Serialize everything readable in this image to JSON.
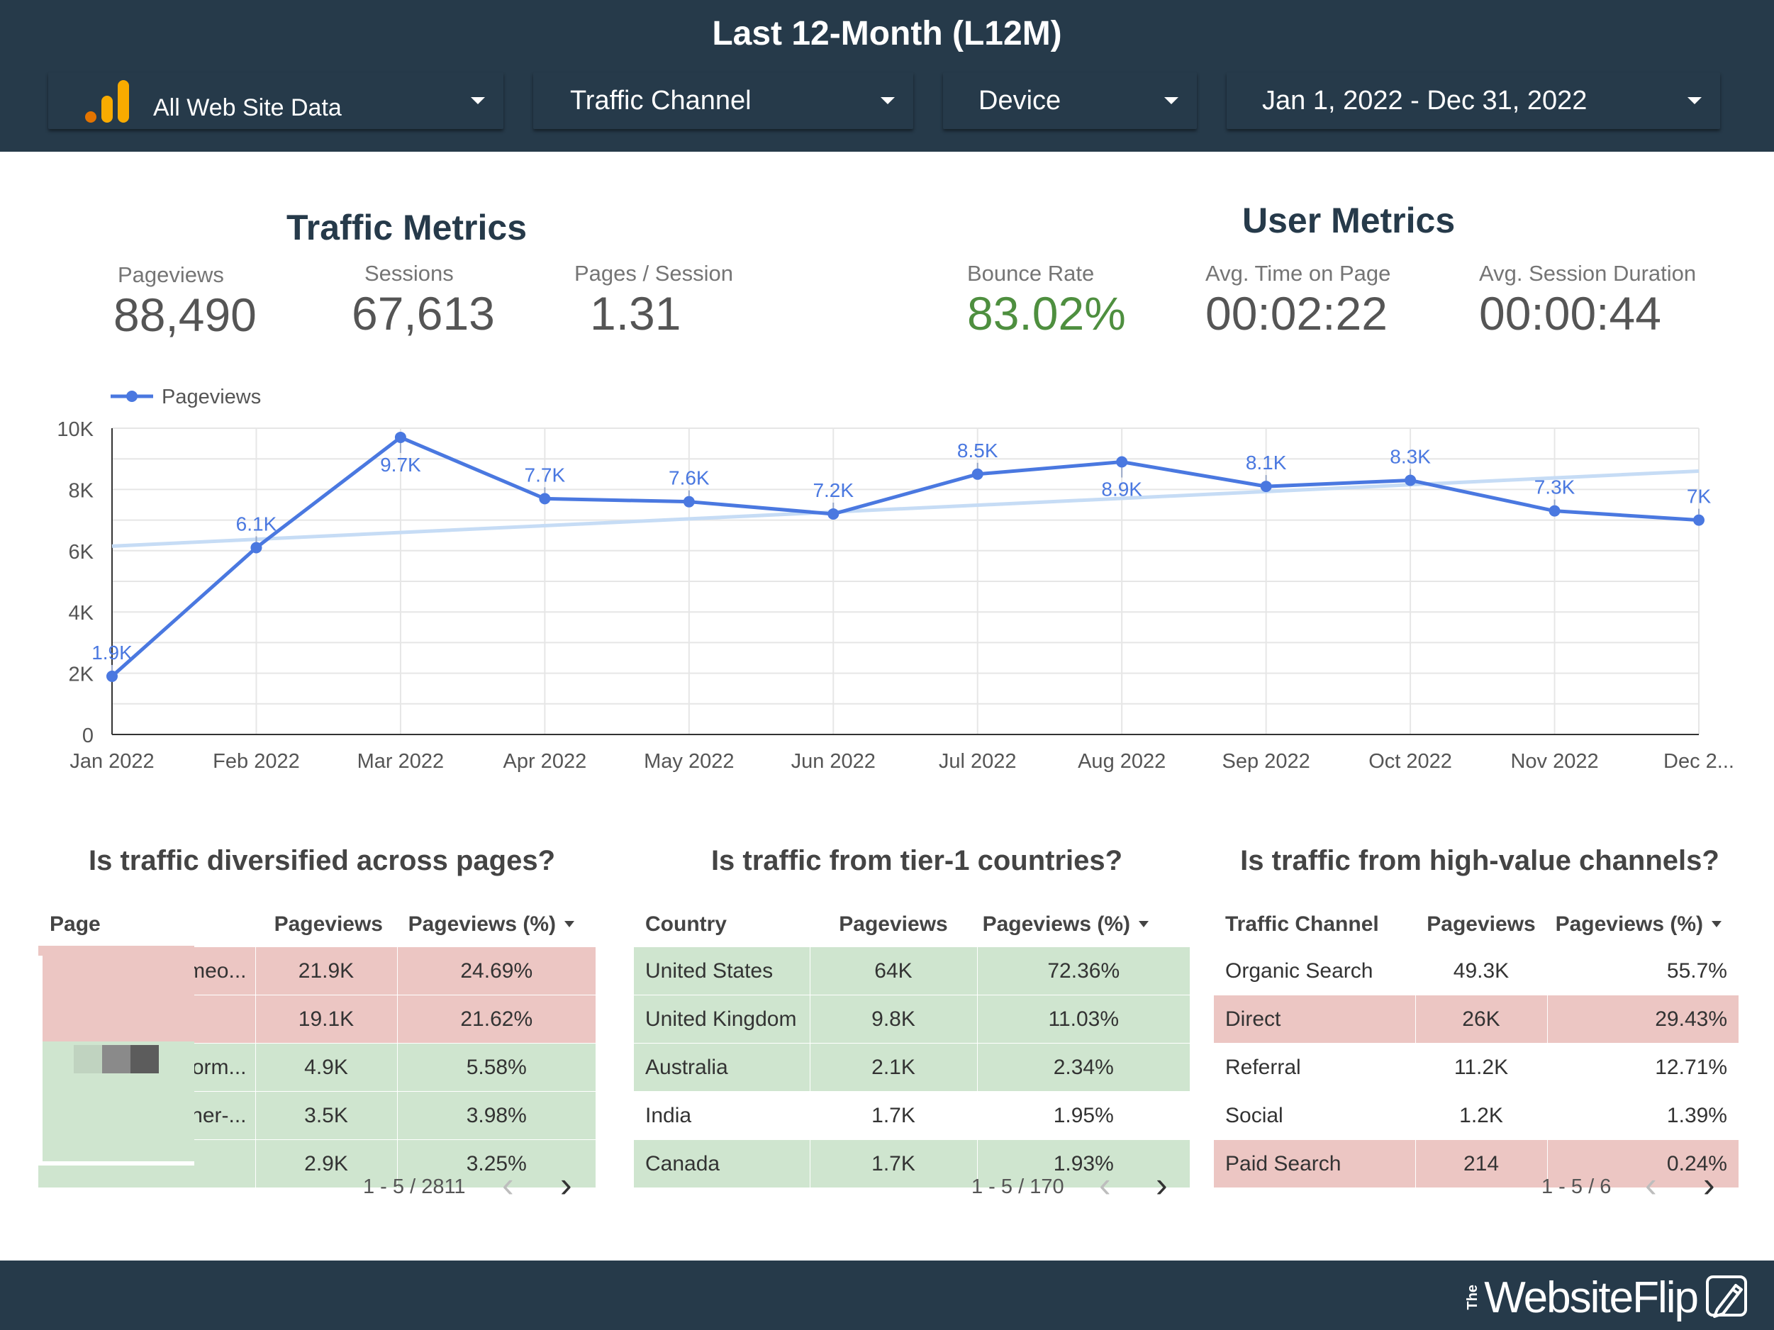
{
  "header": {
    "title": "Last 12-Month (L12M)",
    "controls": {
      "data_source": "All Web Site Data",
      "channel": "Traffic Channel",
      "device": "Device",
      "date_range": "Jan 1, 2022 - Dec 31, 2022"
    }
  },
  "traffic_metrics": {
    "title": "Traffic Metrics",
    "pageviews": {
      "label": "Pageviews",
      "value": "88,490"
    },
    "sessions": {
      "label": "Sessions",
      "value": "67,613"
    },
    "pages_per_session": {
      "label": "Pages / Session",
      "value": "1.31"
    }
  },
  "user_metrics": {
    "title": "User Metrics",
    "bounce_rate": {
      "label": "Bounce Rate",
      "value": "83.02%"
    },
    "avg_time_on_page": {
      "label": "Avg. Time on Page",
      "value": "00:02:22"
    },
    "avg_session_duration": {
      "label": "Avg. Session Duration",
      "value": "00:00:44"
    }
  },
  "chart_data": {
    "type": "line",
    "categories": [
      "Jan 2022",
      "Feb 2022",
      "Mar 2022",
      "Apr 2022",
      "May 2022",
      "Jun 2022",
      "Jul 2022",
      "Aug 2022",
      "Sep 2022",
      "Oct 2022",
      "Nov 2022",
      "Dec 2..."
    ],
    "series": [
      {
        "name": "Pageviews",
        "values": [
          1900,
          6100,
          9700,
          7700,
          7600,
          7200,
          8500,
          8900,
          8100,
          8300,
          7300,
          7000
        ],
        "labels": [
          "1.9K",
          "6.1K",
          "9.7K",
          "7.7K",
          "7.6K",
          "7.2K",
          "8.5K",
          "8.9K",
          "8.1K",
          "8.3K",
          "7.3K",
          "7K"
        ]
      }
    ],
    "trendline": {
      "start": 6150,
      "end": 8600
    },
    "yticks": [
      {
        "v": 0,
        "t": "0"
      },
      {
        "v": 2000,
        "t": "2K"
      },
      {
        "v": 4000,
        "t": "4K"
      },
      {
        "v": 6000,
        "t": "6K"
      },
      {
        "v": 8000,
        "t": "8K"
      },
      {
        "v": 10000,
        "t": "10K"
      }
    ],
    "ylim": [
      0,
      10000
    ],
    "grid": true,
    "legend": "top-left",
    "colors": {
      "line": "#4a78e0",
      "trend": "#c6dcf5",
      "label": "#4a78e0"
    }
  },
  "tables": {
    "pages": {
      "title": "Is traffic diversified across pages?",
      "headers": [
        "Page",
        "Pageviews",
        "Pageviews (%)"
      ],
      "rows": [
        {
          "page": "meo...",
          "views": "21.9K",
          "pct": "24.69%"
        },
        {
          "page": "",
          "views": "19.1K",
          "pct": "21.62%"
        },
        {
          "page": "orm...",
          "views": "4.9K",
          "pct": "5.58%"
        },
        {
          "page": "ner-...",
          "views": "3.5K",
          "pct": "3.98%"
        },
        {
          "page": "",
          "views": "2.9K",
          "pct": "3.25%"
        }
      ],
      "pager": "1 - 5 / 2811"
    },
    "countries": {
      "title": "Is traffic from tier-1 countries?",
      "headers": [
        "Country",
        "Pageviews",
        "Pageviews (%)"
      ],
      "rows": [
        {
          "name": "United States",
          "views": "64K",
          "pct": "72.36%"
        },
        {
          "name": "United Kingdom",
          "views": "9.8K",
          "pct": "11.03%"
        },
        {
          "name": "Australia",
          "views": "2.1K",
          "pct": "2.34%"
        },
        {
          "name": "India",
          "views": "1.7K",
          "pct": "1.95%"
        },
        {
          "name": "Canada",
          "views": "1.7K",
          "pct": "1.93%"
        }
      ],
      "pager": "1 - 5 / 170"
    },
    "channels": {
      "title": "Is traffic from high-value channels?",
      "headers": [
        "Traffic Channel",
        "Pageviews",
        "Pageviews (%)"
      ],
      "rows": [
        {
          "name": "Organic Search",
          "views": "49.3K",
          "pct": "55.7%"
        },
        {
          "name": "Direct",
          "views": "26K",
          "pct": "29.43%"
        },
        {
          "name": "Referral",
          "views": "11.2K",
          "pct": "12.71%"
        },
        {
          "name": "Social",
          "views": "1.2K",
          "pct": "1.39%"
        },
        {
          "name": "Paid Search",
          "views": "214",
          "pct": "0.24%"
        }
      ],
      "pager": "1 - 5 / 6"
    }
  },
  "brand": {
    "logo_small": "The",
    "logo_text": "WebsiteFlip"
  },
  "colors": {
    "header_bg": "#263a4a",
    "good_row": "#cfe5cf",
    "bad_row": "#ecc6c3",
    "bounce_green": "#4e8f3f"
  }
}
